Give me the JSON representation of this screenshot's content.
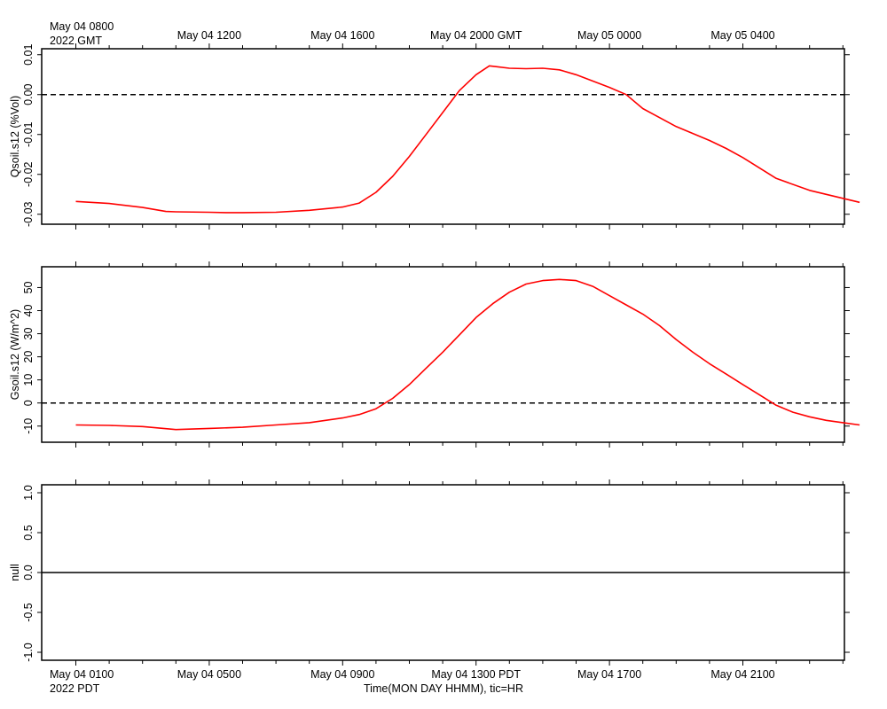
{
  "chart_data": {
    "type": "line",
    "colors": {
      "series": "#ff0000",
      "axis": "#000000",
      "reference": "#000000"
    },
    "top_axis": {
      "corner_label": [
        "May 04 0800",
        "2022 GMT"
      ],
      "tick_labels": [
        "May 04 1200",
        "May 04 1600",
        "May 04 2000 GMT",
        "May 05 0000",
        "May 05 0400"
      ]
    },
    "bottom_axis": {
      "corner_label": [
        "May 04 0100",
        "2022 PDT"
      ],
      "tick_labels": [
        "May 04 0500",
        "May 04 0900",
        "May 04 1300 PDT",
        "May 04 1700",
        "May 04 2100"
      ],
      "xlabel": "Time(MON DAY HHMM), tic=HR"
    },
    "x_hours_pdt_range": [
      0.0,
      23.5
    ],
    "panels": [
      {
        "ylabel": "Qsoil.s12 (%Vol)",
        "ylim": [
          -0.0325,
          0.0115
        ],
        "yticks": [
          "0.01",
          "0.00",
          "-0.01",
          "-0.02",
          "-0.03"
        ],
        "ytick_values": [
          0.01,
          0.0,
          -0.01,
          -0.02,
          -0.03
        ],
        "reference_line": 0.0,
        "reference_style": "dashed",
        "series": [
          {
            "x": [
              0.0,
              1.0,
              2.0,
              2.7,
              3.0,
              4.0,
              4.5,
              5.0,
              6.0,
              7.0,
              8.0,
              8.5,
              9.0,
              9.5,
              10.0,
              10.5,
              11.0,
              11.5,
              12.0,
              12.4,
              12.6,
              13.0,
              13.5,
              14.0,
              14.5,
              15.0,
              16.0,
              16.5,
              17.0,
              18.0,
              19.0,
              19.5,
              20.0,
              21.0,
              22.0,
              23.0,
              23.5
            ],
            "values": [
              -0.0268,
              -0.0273,
              -0.0283,
              -0.0293,
              -0.0294,
              -0.0295,
              -0.0296,
              -0.0296,
              -0.0295,
              -0.029,
              -0.0282,
              -0.0272,
              -0.0245,
              -0.0205,
              -0.0155,
              -0.01,
              -0.0045,
              0.001,
              0.005,
              0.0072,
              0.007,
              0.0066,
              0.0065,
              0.0066,
              0.0062,
              0.005,
              0.0018,
              0.0,
              -0.0035,
              -0.008,
              -0.0115,
              -0.0135,
              -0.0158,
              -0.021,
              -0.024,
              -0.026,
              -0.027
            ]
          }
        ]
      },
      {
        "ylabel": "Gsoil.s12 (W/m^2)",
        "ylim": [
          -17,
          59
        ],
        "yticks": [
          "50",
          "40",
          "30",
          "20",
          "10",
          "0",
          "-10"
        ],
        "ytick_values": [
          50,
          40,
          30,
          20,
          10,
          0,
          -10
        ],
        "reference_line": 0,
        "reference_style": "dashed",
        "series": [
          {
            "x": [
              0.0,
              1.0,
              2.0,
              3.0,
              4.0,
              5.0,
              6.0,
              7.0,
              8.0,
              8.5,
              9.0,
              9.5,
              10.0,
              10.5,
              11.0,
              11.5,
              12.0,
              12.5,
              13.0,
              13.5,
              14.0,
              14.5,
              15.0,
              15.5,
              16.0,
              16.5,
              17.0,
              17.5,
              18.0,
              18.5,
              19.0,
              19.5,
              20.0,
              20.5,
              21.0,
              21.5,
              22.0,
              22.5,
              23.0,
              23.5
            ],
            "values": [
              -9.5,
              -9.7,
              -10.2,
              -11.5,
              -11.0,
              -10.5,
              -9.5,
              -8.5,
              -6.5,
              -5.0,
              -2.5,
              2.0,
              8.0,
              15.0,
              22.0,
              29.5,
              37.0,
              43.0,
              48.0,
              51.5,
              53.0,
              53.5,
              53.0,
              50.5,
              46.5,
              42.5,
              38.5,
              33.5,
              27.5,
              22.0,
              17.0,
              12.5,
              8.0,
              3.5,
              -1.0,
              -4.0,
              -6.0,
              -7.5,
              -8.5,
              -9.5
            ]
          }
        ]
      },
      {
        "ylabel": "null",
        "ylim": [
          -1.1,
          1.1
        ],
        "yticks": [
          "1.0",
          "0.5",
          "0.0",
          "-0.5",
          "-1.0"
        ],
        "ytick_values": [
          1.0,
          0.5,
          0.0,
          -0.5,
          -1.0
        ],
        "reference_line": 0.0,
        "reference_style": "solid",
        "series": []
      }
    ]
  }
}
